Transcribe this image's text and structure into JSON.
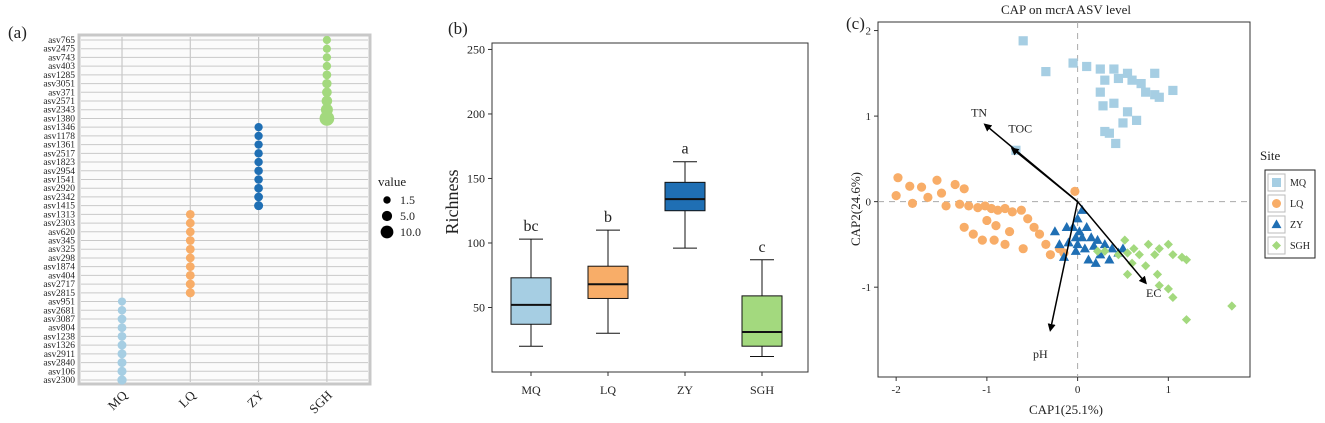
{
  "chart_data": [
    {
      "panel_label": "(a)",
      "type": "scatter",
      "subtype": "dot-matrix",
      "categories": [
        "MQ",
        "LQ",
        "ZY",
        "SGH"
      ],
      "colors": {
        "MQ": "#a6cee3",
        "LQ": "#f8ad68",
        "ZY": "#1f6fb4",
        "SGH": "#a3d97e"
      },
      "asv_labels": [
        "asv765",
        "asv2475",
        "asv743",
        "asv403",
        "asv1285",
        "asv3051",
        "asv371",
        "asv2571",
        "asv2343",
        "asv1380",
        "asv1346",
        "asv1178",
        "asv1361",
        "asv2517",
        "asv1823",
        "asv2954",
        "asv1541",
        "asv2920",
        "asv2342",
        "asv1415",
        "asv1313",
        "asv2303",
        "asv620",
        "asv345",
        "asv325",
        "asv298",
        "asv1874",
        "asv404",
        "asv2717",
        "asv2815",
        "asv951",
        "asv2681",
        "asv3087",
        "asv804",
        "asv1238",
        "asv1326",
        "asv2911",
        "asv2840",
        "asv106",
        "asv2300"
      ],
      "points": [
        {
          "asv": "asv765",
          "group": "SGH",
          "value": 1.5
        },
        {
          "asv": "asv2475",
          "group": "SGH",
          "value": 1.5
        },
        {
          "asv": "asv743",
          "group": "SGH",
          "value": 1.6
        },
        {
          "asv": "asv403",
          "group": "SGH",
          "value": 1.7
        },
        {
          "asv": "asv1285",
          "group": "SGH",
          "value": 2.0
        },
        {
          "asv": "asv3051",
          "group": "SGH",
          "value": 2.5
        },
        {
          "asv": "asv371",
          "group": "SGH",
          "value": 3.0
        },
        {
          "asv": "asv2571",
          "group": "SGH",
          "value": 4.0
        },
        {
          "asv": "asv2343",
          "group": "SGH",
          "value": 6.0
        },
        {
          "asv": "asv1380",
          "group": "SGH",
          "value": 11.0
        },
        {
          "asv": "asv1346",
          "group": "ZY",
          "value": 1.6
        },
        {
          "asv": "asv1178",
          "group": "ZY",
          "value": 1.6
        },
        {
          "asv": "asv1361",
          "group": "ZY",
          "value": 1.6
        },
        {
          "asv": "asv2517",
          "group": "ZY",
          "value": 1.7
        },
        {
          "asv": "asv1823",
          "group": "ZY",
          "value": 1.7
        },
        {
          "asv": "asv2954",
          "group": "ZY",
          "value": 1.8
        },
        {
          "asv": "asv1541",
          "group": "ZY",
          "value": 1.8
        },
        {
          "asv": "asv2920",
          "group": "ZY",
          "value": 1.9
        },
        {
          "asv": "asv2342",
          "group": "ZY",
          "value": 2.0
        },
        {
          "asv": "asv1415",
          "group": "ZY",
          "value": 2.2
        },
        {
          "asv": "asv1313",
          "group": "LQ",
          "value": 2.0
        },
        {
          "asv": "asv2303",
          "group": "LQ",
          "value": 2.0
        },
        {
          "asv": "asv620",
          "group": "LQ",
          "value": 2.0
        },
        {
          "asv": "asv345",
          "group": "LQ",
          "value": 2.0
        },
        {
          "asv": "asv325",
          "group": "LQ",
          "value": 2.0
        },
        {
          "asv": "asv298",
          "group": "LQ",
          "value": 2.0
        },
        {
          "asv": "asv1874",
          "group": "LQ",
          "value": 2.0
        },
        {
          "asv": "asv404",
          "group": "LQ",
          "value": 2.1
        },
        {
          "asv": "asv2717",
          "group": "LQ",
          "value": 2.2
        },
        {
          "asv": "asv2815",
          "group": "LQ",
          "value": 2.3
        },
        {
          "asv": "asv951",
          "group": "MQ",
          "value": 1.5
        },
        {
          "asv": "asv2681",
          "group": "MQ",
          "value": 1.8
        },
        {
          "asv": "asv3087",
          "group": "MQ",
          "value": 2.0
        },
        {
          "asv": "asv804",
          "group": "MQ",
          "value": 2.0
        },
        {
          "asv": "asv1238",
          "group": "MQ",
          "value": 2.0
        },
        {
          "asv": "asv1326",
          "group": "MQ",
          "value": 2.1
        },
        {
          "asv": "asv2911",
          "group": "MQ",
          "value": 2.2
        },
        {
          "asv": "asv2840",
          "group": "MQ",
          "value": 2.2
        },
        {
          "asv": "asv106",
          "group": "MQ",
          "value": 2.3
        },
        {
          "asv": "asv2300",
          "group": "MQ",
          "value": 2.5
        }
      ],
      "legend": {
        "title": "value",
        "entries": [
          {
            "label": "1.5",
            "value": 1.5
          },
          {
            "label": "5.0",
            "value": 5.0
          },
          {
            "label": "10.0",
            "value": 10.0
          }
        ]
      }
    },
    {
      "panel_label": "(b)",
      "type": "box",
      "ylabel": "Richness",
      "ylim": [
        0,
        255
      ],
      "yticks": [
        50,
        100,
        150,
        200,
        250
      ],
      "categories": [
        "MQ",
        "LQ",
        "ZY",
        "SGH"
      ],
      "boxes": [
        {
          "name": "MQ",
          "whisker_low": 20,
          "q1": 37,
          "median": 52,
          "q3": 73,
          "whisker_high": 103,
          "letter": "bc",
          "color": "#a6cee3"
        },
        {
          "name": "LQ",
          "whisker_low": 30,
          "q1": 57,
          "median": 68,
          "q3": 82,
          "whisker_high": 110,
          "letter": "b",
          "color": "#f8ad68"
        },
        {
          "name": "ZY",
          "whisker_low": 96,
          "q1": 125,
          "median": 134,
          "q3": 147,
          "whisker_high": 163,
          "letter": "a",
          "color": "#1f6fb4"
        },
        {
          "name": "SGH",
          "whisker_low": 12,
          "q1": 20,
          "median": 31,
          "q3": 59,
          "whisker_high": 87,
          "letter": "c",
          "color": "#a3d97e"
        }
      ]
    },
    {
      "panel_label": "(c)",
      "type": "scatter",
      "title": "CAP on mcrA ASV level",
      "xlabel": "CAP1(25.1%)",
      "ylabel": "CAP2(24.6%)",
      "xlim": [
        -2.2,
        1.9
      ],
      "ylim": [
        -2.05,
        2.1
      ],
      "xticks": [
        -2,
        -1,
        0,
        1
      ],
      "yticks": [
        -1,
        0,
        1,
        2
      ],
      "legend_title": "Site",
      "series": [
        {
          "name": "MQ",
          "marker": "square",
          "color": "#a6cee3",
          "points": [
            [
              -0.6,
              1.88
            ],
            [
              -0.35,
              1.52
            ],
            [
              -0.05,
              1.62
            ],
            [
              0.1,
              1.58
            ],
            [
              0.25,
              1.55
            ],
            [
              0.4,
              1.55
            ],
            [
              0.55,
              1.5
            ],
            [
              0.7,
              1.38
            ],
            [
              0.85,
              1.5
            ],
            [
              1.05,
              1.3
            ],
            [
              0.3,
              1.42
            ],
            [
              0.45,
              1.44
            ],
            [
              0.6,
              1.42
            ],
            [
              0.75,
              1.28
            ],
            [
              0.85,
              1.25
            ],
            [
              0.9,
              1.22
            ],
            [
              0.25,
              1.28
            ],
            [
              0.28,
              1.12
            ],
            [
              0.4,
              1.15
            ],
            [
              0.55,
              1.05
            ],
            [
              0.5,
              0.92
            ],
            [
              0.65,
              0.95
            ],
            [
              0.3,
              0.82
            ],
            [
              0.35,
              0.8
            ],
            [
              0.42,
              0.68
            ],
            [
              -0.68,
              0.6
            ]
          ]
        },
        {
          "name": "LQ",
          "marker": "circle",
          "color": "#f8ad68",
          "points": [
            [
              -1.98,
              0.28
            ],
            [
              -2.0,
              0.07
            ],
            [
              -1.85,
              0.18
            ],
            [
              -1.72,
              0.17
            ],
            [
              -1.55,
              0.25
            ],
            [
              -1.5,
              0.1
            ],
            [
              -1.35,
              0.2
            ],
            [
              -1.25,
              0.15
            ],
            [
              -1.65,
              0.05
            ],
            [
              -1.82,
              -0.02
            ],
            [
              -1.45,
              -0.05
            ],
            [
              -1.3,
              -0.03
            ],
            [
              -1.2,
              -0.05
            ],
            [
              -1.1,
              -0.07
            ],
            [
              -1.02,
              -0.05
            ],
            [
              -0.95,
              -0.08
            ],
            [
              -0.88,
              -0.1
            ],
            [
              -0.8,
              -0.08
            ],
            [
              -0.72,
              -0.12
            ],
            [
              -0.62,
              -0.1
            ],
            [
              -0.55,
              -0.2
            ],
            [
              -0.48,
              -0.3
            ],
            [
              -0.42,
              -0.38
            ],
            [
              -0.35,
              -0.5
            ],
            [
              -1.0,
              -0.22
            ],
            [
              -0.9,
              -0.28
            ],
            [
              -1.25,
              -0.3
            ],
            [
              -1.05,
              -0.45
            ],
            [
              -0.92,
              -0.45
            ],
            [
              -0.8,
              -0.5
            ],
            [
              -0.75,
              -0.35
            ],
            [
              -0.6,
              -0.55
            ],
            [
              -0.3,
              -0.62
            ],
            [
              -0.2,
              -0.55
            ],
            [
              -0.15,
              -0.6
            ],
            [
              -1.15,
              -0.38
            ],
            [
              -0.03,
              0.12
            ]
          ]
        },
        {
          "name": "ZY",
          "marker": "triangle",
          "color": "#1f6fb4",
          "points": [
            [
              -0.25,
              -0.35
            ],
            [
              -0.12,
              -0.3
            ],
            [
              -0.05,
              -0.3
            ],
            [
              0.02,
              -0.35
            ],
            [
              0.1,
              -0.3
            ],
            [
              -0.02,
              -0.42
            ],
            [
              0.05,
              -0.42
            ],
            [
              0.15,
              -0.42
            ],
            [
              0.22,
              -0.45
            ],
            [
              -0.1,
              -0.48
            ],
            [
              0.0,
              -0.5
            ],
            [
              0.08,
              -0.55
            ],
            [
              0.18,
              -0.52
            ],
            [
              0.3,
              -0.5
            ],
            [
              -0.2,
              -0.5
            ],
            [
              0.38,
              -0.55
            ],
            [
              0.45,
              -0.6
            ],
            [
              0.5,
              -0.55
            ],
            [
              0.25,
              -0.62
            ],
            [
              -0.02,
              -0.58
            ],
            [
              0.12,
              -0.68
            ],
            [
              0.35,
              -0.68
            ],
            [
              0.2,
              -0.72
            ],
            [
              -0.15,
              -0.65
            ],
            [
              0.0,
              -0.2
            ],
            [
              0.05,
              -0.1
            ]
          ]
        },
        {
          "name": "SGH",
          "marker": "diamond",
          "color": "#a3d97e",
          "points": [
            [
              0.52,
              -0.45
            ],
            [
              0.62,
              -0.55
            ],
            [
              0.78,
              -0.5
            ],
            [
              0.9,
              -0.55
            ],
            [
              1.0,
              -0.5
            ],
            [
              0.55,
              -0.6
            ],
            [
              0.68,
              -0.62
            ],
            [
              0.85,
              -0.62
            ],
            [
              1.05,
              -0.62
            ],
            [
              1.15,
              -0.65
            ],
            [
              1.2,
              -0.68
            ],
            [
              0.6,
              -0.72
            ],
            [
              0.75,
              -0.75
            ],
            [
              0.88,
              -0.85
            ],
            [
              0.9,
              -0.98
            ],
            [
              1.0,
              -1.02
            ],
            [
              1.05,
              -1.12
            ],
            [
              0.55,
              -0.85
            ],
            [
              0.45,
              -0.62
            ],
            [
              0.3,
              -0.58
            ],
            [
              1.2,
              -1.38
            ],
            [
              1.7,
              -1.22
            ],
            [
              0.22,
              -0.58
            ]
          ]
        }
      ],
      "arrows": [
        {
          "label": "TN",
          "x": -1.02,
          "y": 0.9
        },
        {
          "label": "TOC",
          "x": -0.72,
          "y": 0.62
        },
        {
          "label": "EC",
          "x": 0.75,
          "y": -0.95
        },
        {
          "label": "pH",
          "x": -0.3,
          "y": -1.5
        }
      ]
    }
  ]
}
